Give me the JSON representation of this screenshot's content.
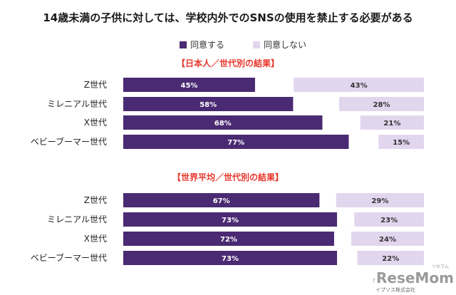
{
  "chart_data": {
    "type": "bar",
    "title": "14歳未満の子供に対しては、学校内外でのSNSの使用を禁止する必要がある",
    "legend": [
      "同意する",
      "同意しない"
    ],
    "colors": {
      "agree": "#4a2a72",
      "disagree": "#e2d6ee",
      "section_title": "#e8372c"
    },
    "panels": [
      {
        "title": "【日本人／世代別の結果】",
        "categories": [
          "Z世代",
          "ミレニアル世代",
          "X世代",
          "ベビーブーマー世代"
        ],
        "series": [
          {
            "name": "同意する",
            "values": [
              45,
              58,
              68,
              77
            ]
          },
          {
            "name": "同意しない",
            "values": [
              43,
              28,
              21,
              15
            ]
          }
        ]
      },
      {
        "title": "【世界平均／世代別の結果】",
        "categories": [
          "Z世代",
          "ミレニアル世代",
          "X世代",
          "ベビーブーマー世代"
        ],
        "series": [
          {
            "name": "同意する",
            "values": [
              67,
              73,
              72,
              73
            ]
          },
          {
            "name": "同意しない",
            "values": [
              29,
              23,
              24,
              22
            ]
          }
        ]
      }
    ],
    "unit": "%"
  },
  "footer": {
    "source_text": "イプソス株式会社",
    "source_prefix": "「",
    "watermark": "ReseMom",
    "watermark_ruby": "リセマム"
  }
}
